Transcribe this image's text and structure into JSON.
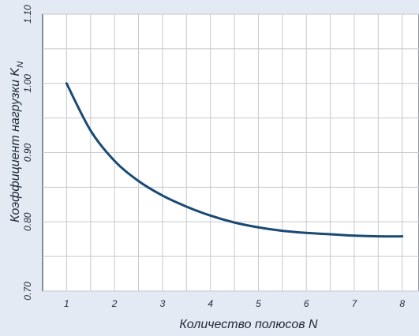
{
  "chart_data": {
    "type": "line",
    "title": "",
    "xlabel": "Количество полюсов N",
    "ylabel": "Коэффициент нагрузки K",
    "ylabel_subscript": "N",
    "xlim": [
      0.5,
      8.35
    ],
    "ylim": [
      0.7,
      1.1
    ],
    "x_ticks": [
      1,
      2,
      3,
      4,
      5,
      6,
      7,
      8
    ],
    "x_tick_labels": [
      "1",
      "2",
      "3",
      "4",
      "5",
      "6",
      "7",
      "8"
    ],
    "y_ticks": [
      0.7,
      0.8,
      0.9,
      1.0,
      1.1
    ],
    "y_tick_labels": [
      "0.70",
      "0.80",
      "0.90",
      "1.00",
      "1.10"
    ],
    "grid": true,
    "series": [
      {
        "x": [
          1,
          1.5,
          2,
          2.5,
          3,
          3.5,
          4,
          4.5,
          5,
          5.5,
          6,
          6.5,
          7,
          7.5,
          8
        ],
        "y": [
          1.0,
          0.932,
          0.888,
          0.859,
          0.838,
          0.822,
          0.809,
          0.799,
          0.792,
          0.787,
          0.784,
          0.782,
          0.78,
          0.779,
          0.779
        ]
      }
    ],
    "colors": {
      "line": "#1a4a73",
      "grid": "#c4c9cf",
      "plot_bg": "#ffffff",
      "page_bg": "#e3eaf4"
    }
  }
}
